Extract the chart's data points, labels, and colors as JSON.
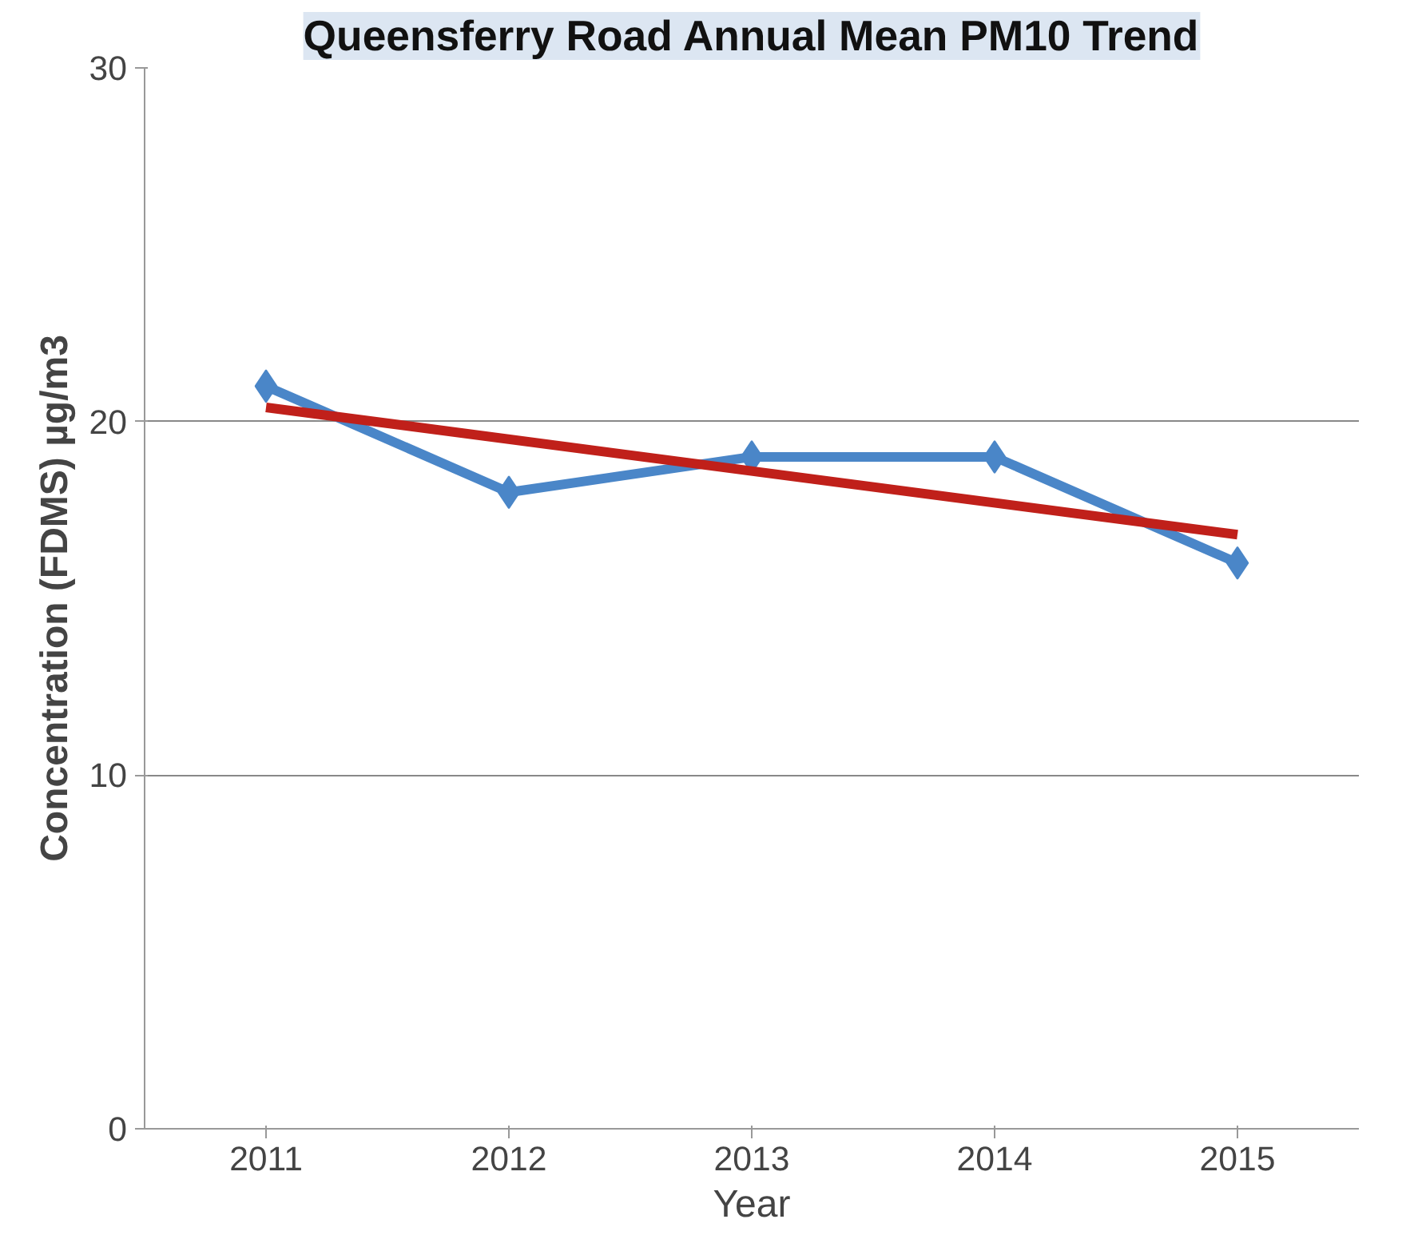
{
  "chart_data": {
    "type": "line",
    "title": "Queensferry Road Annual Mean PM10 Trend",
    "xlabel": "Year",
    "ylabel": "Concentration (FDMS) µg/m3",
    "x": [
      2011,
      2012,
      2013,
      2014,
      2015
    ],
    "series": [
      {
        "color": "#4a86c8",
        "values": [
          21,
          18,
          19,
          19,
          16
        ],
        "marker": "diamond"
      },
      {
        "type": "line",
        "color": "#c0201a",
        "x": [
          2011,
          2015
        ],
        "values": [
          20.4,
          16.8
        ],
        "marker": "none"
      }
    ],
    "xlim": [
      2010.5,
      2015.5
    ],
    "xticks": [
      2011,
      2012,
      2013,
      2014,
      2015
    ],
    "ylim": [
      0,
      30
    ],
    "yticks": [
      0,
      10,
      20,
      30
    ],
    "grid": "y"
  }
}
